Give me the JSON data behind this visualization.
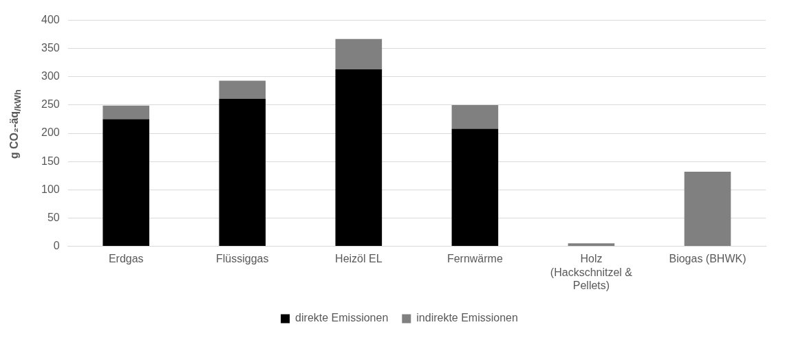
{
  "chart_data": {
    "type": "bar",
    "stacked": true,
    "ylabel": "g CO₂-äq$_{/kWh}$",
    "categories": [
      "Erdgas",
      "Flüssiggas",
      "Heizöl EL",
      "Fernwärme",
      "Holz (Hackschnitzel & Pellets)",
      "Biogas (BHWK)"
    ],
    "series": [
      {
        "name": "direkte Emissionen",
        "color": "#000000",
        "values": [
          225,
          261,
          313,
          208,
          0,
          0
        ]
      },
      {
        "name": "indirekte Emissionen",
        "color": "#808080",
        "values": [
          24,
          32,
          54,
          42,
          5,
          132
        ]
      }
    ],
    "ylim": [
      0,
      400
    ],
    "yticks": [
      0,
      50,
      100,
      150,
      200,
      250,
      300,
      350,
      400
    ],
    "grid": "y",
    "legend": "bottom"
  }
}
